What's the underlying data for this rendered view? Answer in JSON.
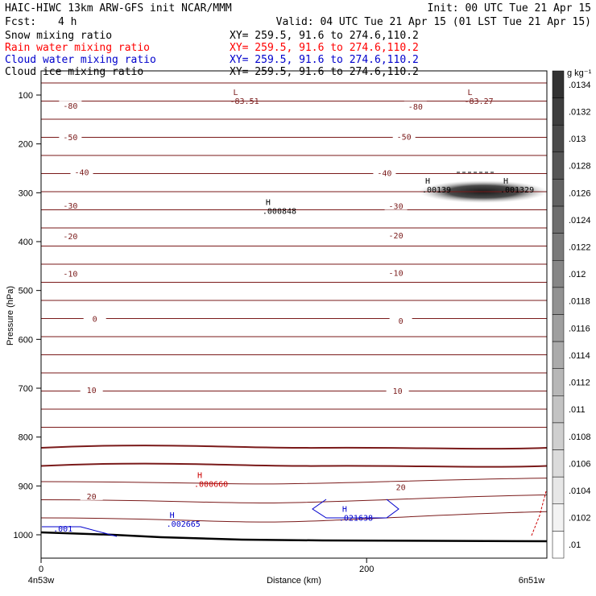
{
  "header": {
    "title": "HAIC-HIWC 13km ARW-GFS init   NCAR/MMM",
    "init": "Init: 00 UTC Tue 21 Apr 15",
    "fcst_label": "Fcst:",
    "fcst_value": "4 h",
    "valid": "Valid: 04 UTC Tue 21 Apr 15 (01 LST Tue 21 Apr 15)"
  },
  "fields": [
    {
      "name": "Snow mixing ratio",
      "xy": "XY= 259.5, 91.6 to 274.6,110.2",
      "color": "#000000"
    },
    {
      "name": "Rain water mixing ratio",
      "xy": "XY= 259.5, 91.6 to 274.6,110.2",
      "color": "#ff0000"
    },
    {
      "name": "Cloud water mixing ratio",
      "xy": "XY= 259.5, 91.6 to 274.6,110.2",
      "color": "#0000cc"
    },
    {
      "name": "Cloud ice mixing ratio",
      "xy": "XY= 259.5, 91.6 to 274.6,110.2",
      "color": "#000000"
    }
  ],
  "colors": {
    "isotherm": "#7a1a1a",
    "rain": "#cc0000",
    "cloud": "#0000cc",
    "ice": "#000000"
  },
  "chart_data": {
    "type": "contour",
    "xlabel": "Distance (km)",
    "ylabel": "Pressure (hPa)",
    "xlim": [
      0,
      310
    ],
    "ylim": [
      1050,
      70
    ],
    "x_ticks": [
      0,
      200
    ],
    "y_ticks": [
      100,
      200,
      300,
      400,
      500,
      600,
      700,
      800,
      900,
      1000
    ],
    "x_endpoint_left": "4n53w",
    "x_endpoint_right": "6n51w",
    "colorbar": {
      "unit": "g kg⁻¹",
      "levels": [
        ".0134",
        ".0132",
        ".013",
        ".0128",
        ".0126",
        ".0124",
        ".0122",
        ".012",
        ".0118",
        ".0116",
        ".0114",
        ".0112",
        ".011",
        ".0108",
        ".0106",
        ".0104",
        ".0102",
        ".01"
      ]
    },
    "isotherm_labels": [
      {
        "text": "-80",
        "x": 18,
        "p": 125
      },
      {
        "text": "-80",
        "x": 230,
        "p": 126
      },
      {
        "text": "-50",
        "x": 18,
        "p": 189
      },
      {
        "text": "-50",
        "x": 223,
        "p": 188
      },
      {
        "text": "-40",
        "x": 25,
        "p": 261
      },
      {
        "text": "-40",
        "x": 211,
        "p": 262
      },
      {
        "text": "-30",
        "x": 18,
        "p": 329
      },
      {
        "text": "-30",
        "x": 218,
        "p": 330
      },
      {
        "text": "-20",
        "x": 18,
        "p": 392
      },
      {
        "text": "-20",
        "x": 218,
        "p": 390
      },
      {
        "text": "-10",
        "x": 18,
        "p": 468
      },
      {
        "text": "-10",
        "x": 218,
        "p": 467
      },
      {
        "text": "0",
        "x": 33,
        "p": 561
      },
      {
        "text": "0",
        "x": 221,
        "p": 565
      },
      {
        "text": "10",
        "x": 31,
        "p": 707
      },
      {
        "text": "10",
        "x": 219,
        "p": 708
      },
      {
        "text": "20",
        "x": 31,
        "p": 924
      },
      {
        "text": "20",
        "x": 221,
        "p": 905
      }
    ],
    "extrema": [
      {
        "letter": "L",
        "value": "-83.51",
        "x": 118,
        "p": 110,
        "color": "#7a1a1a"
      },
      {
        "letter": "L",
        "value": "-83.27",
        "x": 262,
        "p": 110,
        "color": "#7a1a1a"
      },
      {
        "letter": "H",
        "value": ".000848",
        "x": 138,
        "p": 335,
        "color": "#000000"
      },
      {
        "letter": "H",
        "value": ".00139",
        "x": 236,
        "p": 291,
        "color": "#000000"
      },
      {
        "letter": "H",
        "value": ".001329",
        "x": 284,
        "p": 291,
        "color": "#000000"
      },
      {
        "letter": "H",
        "value": ".000660",
        "x": 96,
        "p": 894,
        "color": "#cc0000"
      },
      {
        "letter": "H",
        "value": ".002665",
        "x": 79,
        "p": 975,
        "color": "#0000cc"
      },
      {
        "letter": "H",
        "value": ".021638",
        "x": 185,
        "p": 963,
        "color": "#0000cc"
      }
    ],
    "cloud_label": {
      "text": ".001",
      "x": 6,
      "p": 990
    }
  }
}
